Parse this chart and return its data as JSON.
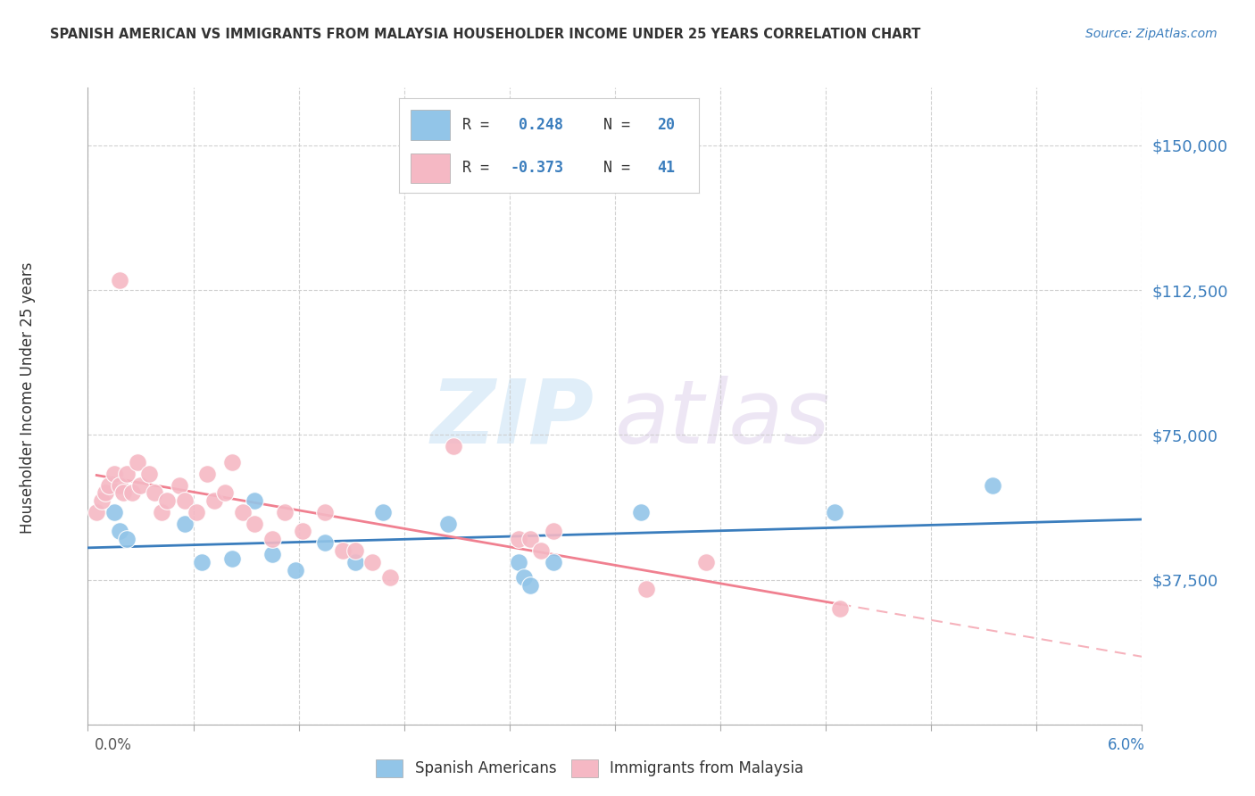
{
  "title": "SPANISH AMERICAN VS IMMIGRANTS FROM MALAYSIA HOUSEHOLDER INCOME UNDER 25 YEARS CORRELATION CHART",
  "source": "Source: ZipAtlas.com",
  "ylabel": "Householder Income Under 25 years",
  "xlim": [
    0.0,
    6.0
  ],
  "ylim": [
    0,
    165000
  ],
  "yticks": [
    0,
    37500,
    75000,
    112500,
    150000
  ],
  "ytick_labels": [
    "",
    "$37,500",
    "$75,000",
    "$112,500",
    "$150,000"
  ],
  "blue_color": "#92c5e8",
  "pink_color": "#f5b8c4",
  "blue_line_color": "#3a7dbd",
  "pink_line_color": "#f08090",
  "blue_scatter_x": [
    0.15,
    0.18,
    0.22,
    0.55,
    0.65,
    0.82,
    0.95,
    1.05,
    1.18,
    1.35,
    1.52,
    1.68,
    2.05,
    2.45,
    2.48,
    2.52,
    2.65,
    3.15,
    4.25,
    5.15
  ],
  "blue_scatter_y": [
    55000,
    50000,
    48000,
    52000,
    42000,
    43000,
    58000,
    44000,
    40000,
    47000,
    42000,
    55000,
    52000,
    42000,
    38000,
    36000,
    42000,
    55000,
    55000,
    62000
  ],
  "pink_scatter_x": [
    0.05,
    0.08,
    0.1,
    0.12,
    0.15,
    0.18,
    0.2,
    0.22,
    0.25,
    0.28,
    0.3,
    0.35,
    0.38,
    0.42,
    0.45,
    0.52,
    0.55,
    0.62,
    0.68,
    0.72,
    0.78,
    0.82,
    0.88,
    0.95,
    1.05,
    1.12,
    1.22,
    1.35,
    1.45,
    1.52,
    1.62,
    1.72,
    2.08,
    2.45,
    2.52,
    2.58,
    2.65,
    3.18,
    3.52,
    4.28,
    0.18
  ],
  "pink_scatter_y": [
    55000,
    58000,
    60000,
    62000,
    65000,
    62000,
    60000,
    65000,
    60000,
    68000,
    62000,
    65000,
    60000,
    55000,
    58000,
    62000,
    58000,
    55000,
    65000,
    58000,
    60000,
    68000,
    55000,
    52000,
    48000,
    55000,
    50000,
    55000,
    45000,
    45000,
    42000,
    38000,
    72000,
    48000,
    48000,
    45000,
    50000,
    35000,
    42000,
    30000,
    115000
  ],
  "r_blue": "0.248",
  "n_blue": "20",
  "r_pink": "-0.373",
  "n_pink": "41"
}
